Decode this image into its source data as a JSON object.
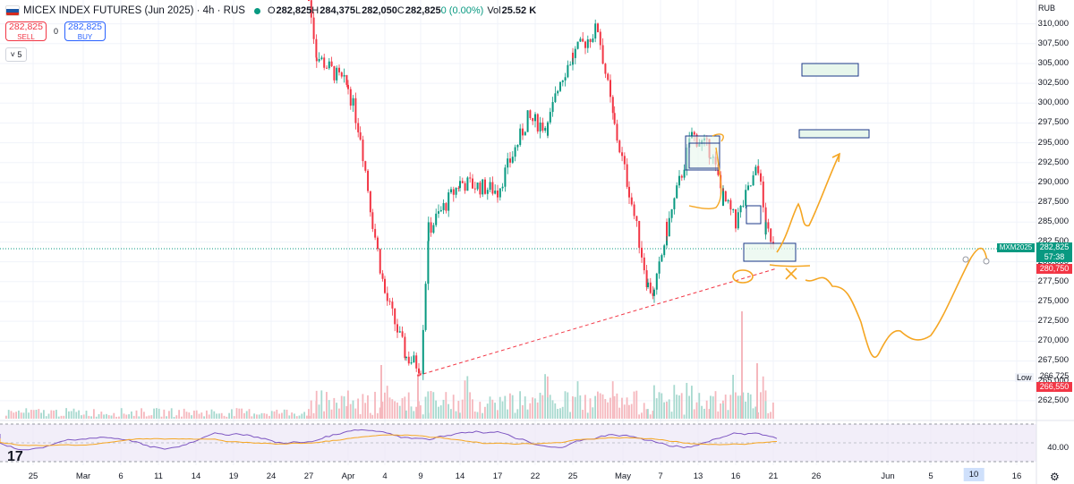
{
  "header": {
    "symbol": "MICEX INDEX FUTURES (Jun 2025) · 4h · RUS",
    "open_label": "O",
    "open": "282,825",
    "high_label": "H",
    "high": "284,375",
    "low_label": "L",
    "low": "282,050",
    "close_label": "C",
    "close": "282,825",
    "change": "0 (0.00%)",
    "vol_label": "Vol",
    "vol": "25.52 K"
  },
  "trade": {
    "sell_price": "282,825",
    "sell_label": "SELL",
    "buy_price": "282,825",
    "buy_label": "BUY",
    "spread": "0"
  },
  "indicator_toggle": "5",
  "currency": "RUB",
  "price_tags": {
    "ticker": "MXM2025",
    "last": "282,825",
    "countdown": "57:38",
    "red_level": "280,750",
    "low_label": "Low",
    "low_value": "266,725",
    "low_red": "266,550"
  },
  "rsi_level": "40.00",
  "colors": {
    "up": "#089981",
    "down": "#f23645",
    "drawing": "#f5a623",
    "box": "#1e3a8a"
  },
  "chart_data": {
    "type": "candlestick",
    "interval": "4h",
    "y_axis": {
      "ylim": [
        260000,
        313000
      ],
      "ticks": [
        262500,
        265000,
        267500,
        270000,
        272500,
        275000,
        277500,
        280000,
        282500,
        285000,
        287500,
        290000,
        292500,
        295000,
        297500,
        300000,
        302500,
        305000,
        307500,
        310000
      ]
    },
    "x_ticks": [
      "25",
      "Mar",
      "6",
      "11",
      "14",
      "19",
      "24",
      "27",
      "Apr",
      "4",
      "9",
      "14",
      "17",
      "22",
      "25",
      "May",
      "7",
      "13",
      "16",
      "21",
      "26",
      "Jun",
      "5",
      "10",
      "16"
    ],
    "price_path": [
      [
        "2025-03-27",
        313000
      ],
      [
        "2025-03-28",
        306000
      ],
      [
        "2025-04-01",
        302000
      ],
      [
        "2025-04-02",
        296000
      ],
      [
        "2025-04-03",
        285000
      ],
      [
        "2025-04-04",
        276000
      ],
      [
        "2025-04-07",
        268000
      ],
      [
        "2025-04-09",
        266725
      ],
      [
        "2025-04-10",
        284000
      ],
      [
        "2025-04-14",
        290000
      ],
      [
        "2025-04-17",
        289000
      ],
      [
        "2025-04-21",
        298000
      ],
      [
        "2025-04-23",
        297000
      ],
      [
        "2025-04-24",
        303000
      ],
      [
        "2025-04-25",
        306000
      ],
      [
        "2025-04-28",
        309500
      ],
      [
        "2025-04-30",
        297000
      ],
      [
        "2025-05-02",
        289000
      ],
      [
        "2025-05-05",
        277000
      ],
      [
        "2025-05-06",
        276000
      ],
      [
        "2025-05-08",
        284000
      ],
      [
        "2025-05-12",
        296000
      ],
      [
        "2025-05-14",
        294000
      ],
      [
        "2025-05-15",
        288000
      ],
      [
        "2025-05-16",
        285000
      ],
      [
        "2025-05-19",
        292000
      ],
      [
        "2025-05-20",
        284000
      ],
      [
        "2025-05-21",
        282825
      ]
    ],
    "rsi_band": [
      40,
      58
    ]
  }
}
